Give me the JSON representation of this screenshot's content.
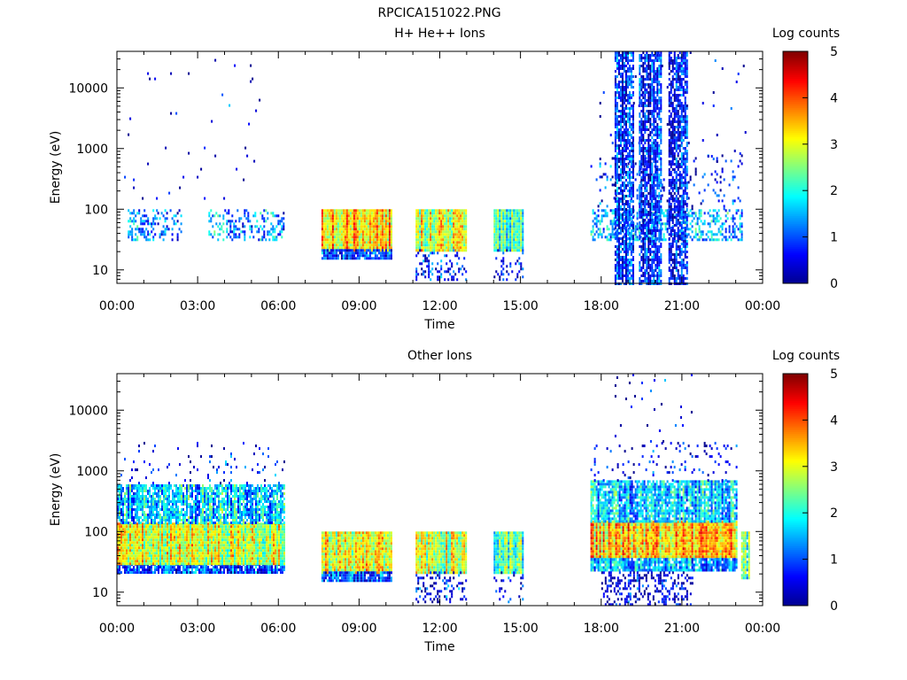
{
  "title": "RPCICA151022.PNG",
  "colors": {
    "colormap": [
      "#00008f",
      "#0000ff",
      "#0080ff",
      "#00ffff",
      "#80ff80",
      "#ffff00",
      "#ff8000",
      "#ff0000",
      "#800000"
    ]
  },
  "chart_data": [
    {
      "type": "heatmap",
      "title": "H+ He++ Ions",
      "xlabel": "Time",
      "ylabel": "Energy (eV)",
      "x_range_hours": [
        0,
        24
      ],
      "x_ticks": [
        "00:00",
        "03:00",
        "06:00",
        "09:00",
        "12:00",
        "15:00",
        "18:00",
        "21:00",
        "00:00"
      ],
      "y_scale": "log",
      "y_range": [
        6,
        40000
      ],
      "y_ticks": [
        10,
        100,
        1000,
        10000
      ],
      "y_tick_labels": [
        "10",
        "100",
        "1000",
        "10000"
      ],
      "colorbar": {
        "label": "Log counts",
        "range": [
          0,
          5
        ],
        "ticks": [
          "0",
          "1",
          "2",
          "3",
          "4",
          "5"
        ]
      },
      "blocks": [
        {
          "t": [
            0.4,
            1.5
          ],
          "e": [
            30,
            100
          ],
          "level": 1.2,
          "density": 0.45
        },
        {
          "t": [
            1.5,
            2.4
          ],
          "e": [
            30,
            100
          ],
          "level": 1.0,
          "density": 0.25
        },
        {
          "t": [
            3.4,
            6.2
          ],
          "e": [
            30,
            100
          ],
          "level": 1.3,
          "density": 0.3
        },
        {
          "t": [
            0.2,
            6.0
          ],
          "e": [
            100,
            30000
          ],
          "level": 0.4,
          "density": 0.006
        },
        {
          "t": [
            7.6,
            10.2
          ],
          "e": [
            22,
            100
          ],
          "level": 3.4,
          "density": 1.0
        },
        {
          "t": [
            7.6,
            10.2
          ],
          "e": [
            15,
            22
          ],
          "level": 1.0,
          "density": 0.9
        },
        {
          "t": [
            11.1,
            13.0
          ],
          "e": [
            22,
            100
          ],
          "level": 2.9,
          "density": 1.0
        },
        {
          "t": [
            11.1,
            13.0
          ],
          "e": [
            7,
            22
          ],
          "level": 0.6,
          "density": 0.25
        },
        {
          "t": [
            14.0,
            15.1
          ],
          "e": [
            22,
            100
          ],
          "level": 2.2,
          "density": 1.0
        },
        {
          "t": [
            14.0,
            15.1
          ],
          "e": [
            7,
            22
          ],
          "level": 0.4,
          "density": 0.2
        },
        {
          "t": [
            17.6,
            23.2
          ],
          "e": [
            30,
            100
          ],
          "level": 1.5,
          "density": 0.45
        },
        {
          "t": [
            17.6,
            23.2
          ],
          "e": [
            100,
            800
          ],
          "level": 0.6,
          "density": 0.08
        },
        {
          "t": [
            18.5,
            19.2
          ],
          "e": [
            6,
            40000
          ],
          "level": 0.7,
          "density": 0.75
        },
        {
          "t": [
            19.4,
            20.2
          ],
          "e": [
            6,
            40000
          ],
          "level": 0.7,
          "density": 0.75
        },
        {
          "t": [
            20.5,
            21.2
          ],
          "e": [
            6,
            40000
          ],
          "level": 0.7,
          "density": 0.75
        },
        {
          "t": [
            17.8,
            23.4
          ],
          "e": [
            400,
            40000
          ],
          "level": 0.3,
          "density": 0.01
        }
      ]
    },
    {
      "type": "heatmap",
      "title": "Other Ions",
      "xlabel": "Time",
      "ylabel": "Energy (eV)",
      "x_range_hours": [
        0,
        24
      ],
      "x_ticks": [
        "00:00",
        "03:00",
        "06:00",
        "09:00",
        "12:00",
        "15:00",
        "18:00",
        "21:00",
        "00:00"
      ],
      "y_scale": "log",
      "y_range": [
        6,
        40000
      ],
      "y_ticks": [
        10,
        100,
        1000,
        10000
      ],
      "y_tick_labels": [
        "10",
        "100",
        "1000",
        "10000"
      ],
      "colorbar": {
        "label": "Log counts",
        "range": [
          0,
          5
        ],
        "ticks": [
          "0",
          "1",
          "2",
          "3",
          "4",
          "5"
        ]
      },
      "blocks": [
        {
          "t": [
            0.0,
            6.2
          ],
          "e": [
            22,
            30
          ],
          "level": 1.0,
          "density": 0.9
        },
        {
          "t": [
            0.0,
            6.2
          ],
          "e": [
            30,
            140
          ],
          "level": 2.9,
          "density": 1.0
        },
        {
          "t": [
            0.0,
            6.2
          ],
          "e": [
            140,
            600
          ],
          "level": 1.6,
          "density": 0.8
        },
        {
          "t": [
            0.0,
            6.2
          ],
          "e": [
            600,
            3000
          ],
          "level": 0.5,
          "density": 0.05
        },
        {
          "t": [
            7.6,
            10.2
          ],
          "e": [
            22,
            100
          ],
          "level": 3.0,
          "density": 1.0
        },
        {
          "t": [
            7.6,
            10.2
          ],
          "e": [
            15,
            22
          ],
          "level": 0.9,
          "density": 0.9
        },
        {
          "t": [
            11.1,
            13.0
          ],
          "e": [
            22,
            100
          ],
          "level": 2.8,
          "density": 1.0
        },
        {
          "t": [
            11.1,
            13.0
          ],
          "e": [
            7,
            22
          ],
          "level": 0.6,
          "density": 0.25
        },
        {
          "t": [
            14.0,
            15.1
          ],
          "e": [
            22,
            100
          ],
          "level": 2.2,
          "density": 1.0
        },
        {
          "t": [
            14.0,
            15.1
          ],
          "e": [
            7,
            22
          ],
          "level": 0.4,
          "density": 0.15
        },
        {
          "t": [
            17.6,
            23.0
          ],
          "e": [
            22,
            40
          ],
          "level": 1.4,
          "density": 0.9
        },
        {
          "t": [
            17.6,
            23.0
          ],
          "e": [
            40,
            150
          ],
          "level": 3.4,
          "density": 1.0
        },
        {
          "t": [
            17.6,
            23.0
          ],
          "e": [
            150,
            700
          ],
          "level": 1.6,
          "density": 0.85
        },
        {
          "t": [
            17.6,
            23.0
          ],
          "e": [
            700,
            3000
          ],
          "level": 0.5,
          "density": 0.08
        },
        {
          "t": [
            18.0,
            21.4
          ],
          "e": [
            6,
            22
          ],
          "level": 0.3,
          "density": 0.35
        },
        {
          "t": [
            23.2,
            23.5
          ],
          "e": [
            18,
            100
          ],
          "level": 2.3,
          "density": 0.9
        },
        {
          "t": [
            18.5,
            21.5
          ],
          "e": [
            3000,
            40000
          ],
          "level": 0.4,
          "density": 0.02
        }
      ]
    }
  ]
}
